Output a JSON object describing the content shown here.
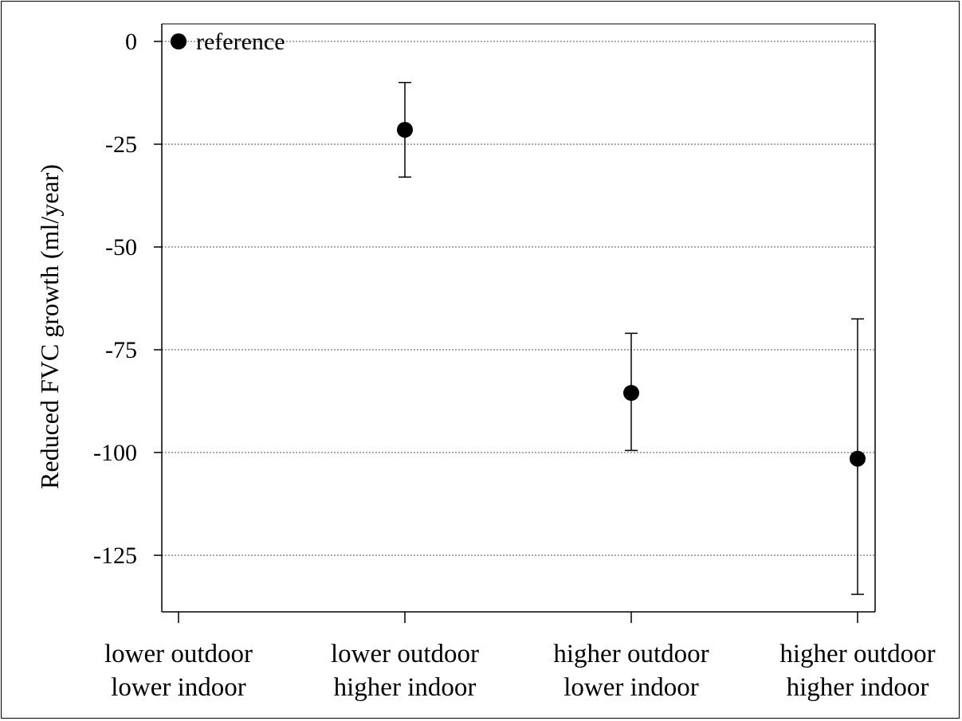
{
  "chart_data": {
    "type": "scatter",
    "ylabel": "Reduced FVC growth (ml/year)",
    "ylim": [
      -138,
      4
    ],
    "yticks": [
      0,
      -25,
      -50,
      -75,
      -100,
      -125
    ],
    "yticks_labels": [
      "0",
      "-25",
      "-50",
      "-75",
      "-100",
      "-125"
    ],
    "grid": "horizontal dotted",
    "categories": [
      [
        "lower outdoor",
        "lower indoor"
      ],
      [
        "lower outdoor",
        "higher indoor"
      ],
      [
        "higher outdoor",
        "lower indoor"
      ],
      [
        "higher outdoor",
        "higher indoor"
      ]
    ],
    "points": [
      {
        "value": 0,
        "lower": null,
        "upper": null
      },
      {
        "value": -21.5,
        "lower": -33,
        "upper": -10
      },
      {
        "value": -85.5,
        "lower": -99.5,
        "upper": -71
      },
      {
        "value": -101.5,
        "lower": -134.5,
        "upper": -67.5
      }
    ],
    "legend": {
      "label": "reference",
      "position": "top-left"
    }
  }
}
